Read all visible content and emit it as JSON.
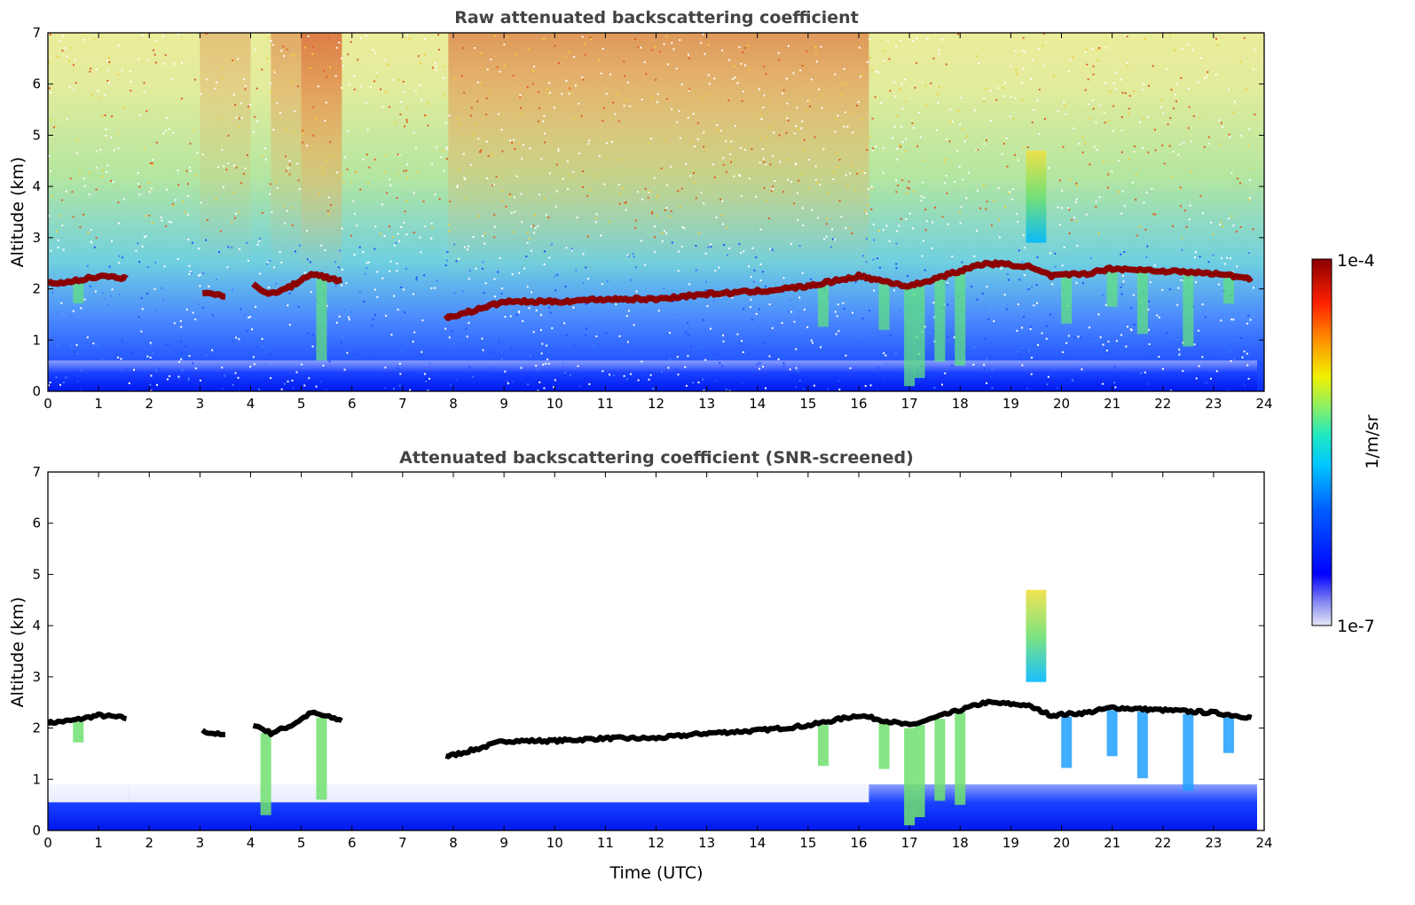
{
  "chart_data": [
    {
      "type": "heatmap",
      "title": "Raw attenuated backscattering coefficient",
      "xlabel": "",
      "ylabel": "Altitude (km)",
      "xlim": [
        0,
        24
      ],
      "ylim": [
        0,
        7
      ],
      "x_ticks": [
        0,
        1,
        2,
        3,
        4,
        5,
        6,
        7,
        8,
        9,
        10,
        11,
        12,
        13,
        14,
        15,
        16,
        17,
        18,
        19,
        20,
        21,
        22,
        23,
        24
      ],
      "y_ticks": [
        0,
        1,
        2,
        3,
        4,
        5,
        6,
        7
      ],
      "cloud_base_km": {
        "time_utc": [
          0,
          0.5,
          1,
          1.5,
          3,
          3.5,
          4,
          4.4,
          4.8,
          5.2,
          5.8,
          7.9,
          8.5,
          9,
          10,
          11,
          12,
          13,
          14,
          15,
          16,
          17,
          18,
          18.5,
          19.3,
          19.8,
          20.5,
          21,
          22,
          23,
          23.8
        ],
        "altitude_km": [
          2.1,
          2.15,
          2.25,
          2.2,
          1.95,
          1.85,
          2.1,
          1.9,
          2.05,
          2.3,
          2.15,
          1.45,
          1.6,
          1.75,
          1.75,
          1.8,
          1.8,
          1.9,
          1.95,
          2.05,
          2.25,
          2.05,
          2.35,
          2.5,
          2.45,
          2.25,
          2.3,
          2.4,
          2.35,
          2.3,
          2.2
        ]
      },
      "gaps_utc": [
        [
          1.6,
          3.0
        ],
        [
          3.5,
          4.0
        ],
        [
          5.8,
          7.8
        ]
      ],
      "elevated_layer": {
        "time_utc": [
          19.3,
          19.7
        ],
        "altitude_km": [
          2.9,
          4.7
        ]
      },
      "boundary_layer_top_km": 0.5
    },
    {
      "type": "heatmap",
      "title": "Attenuated backscattering coefficient (SNR-screened)",
      "xlabel": "Time (UTC)",
      "ylabel": "Altitude (km)",
      "xlim": [
        0,
        24
      ],
      "ylim": [
        0,
        7
      ],
      "x_ticks": [
        0,
        1,
        2,
        3,
        4,
        5,
        6,
        7,
        8,
        9,
        10,
        11,
        12,
        13,
        14,
        15,
        16,
        17,
        18,
        19,
        20,
        21,
        22,
        23,
        24
      ],
      "y_ticks": [
        0,
        1,
        2,
        3,
        4,
        5,
        6,
        7
      ]
    }
  ],
  "colorbar": {
    "label": "1/m/sr",
    "max_label": "1e-4",
    "min_label": "1e-7",
    "scale": "log",
    "range": [
      1e-07,
      0.0001
    ],
    "colormap": [
      "#e8e8f8",
      "#8a8ef0",
      "#0000ff",
      "#0060ff",
      "#00c8ff",
      "#20e8c0",
      "#90f060",
      "#f0f000",
      "#ff9000",
      "#ff2000",
      "#8b0000"
    ]
  },
  "colors": {
    "cloud": "#8b0000",
    "background": "#ffffff",
    "axis": "#000000",
    "title": "#444444"
  }
}
